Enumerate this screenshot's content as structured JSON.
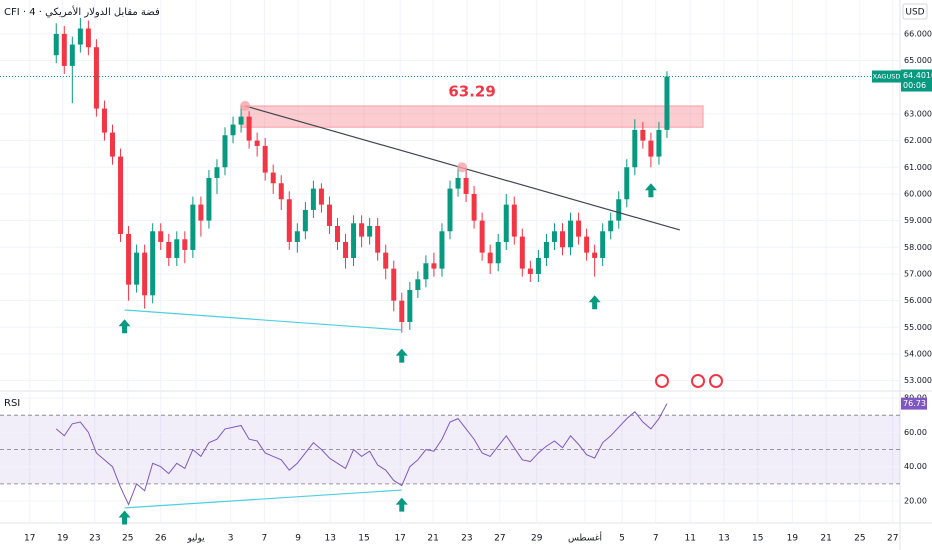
{
  "chart_data": [
    {
      "type": "candlestick",
      "title": "CFI · فضة مقابل الدولار الأمريكي · 4",
      "currency": "USD",
      "x": [
        0,
        1,
        2,
        3,
        4,
        5,
        6,
        7,
        8,
        9,
        10,
        11,
        12,
        13,
        14,
        15,
        16,
        17,
        18,
        19,
        20,
        21,
        22,
        23,
        24,
        25,
        26,
        27,
        28,
        29,
        30,
        31,
        32,
        33,
        34,
        35,
        36,
        37,
        38,
        39,
        40,
        41,
        42,
        43,
        44,
        45,
        46,
        47,
        48,
        49,
        50,
        51,
        52,
        53,
        54,
        55,
        56,
        57,
        58,
        59,
        60,
        61,
        62,
        63,
        64,
        65,
        66,
        67,
        68,
        69,
        70,
        71,
        72,
        73,
        74,
        75,
        76
      ],
      "open": [
        65.2,
        66.0,
        64.8,
        65.6,
        66.2,
        65.5,
        63.2,
        62.3,
        61.4,
        58.5,
        56.6,
        57.8,
        56.2,
        58.6,
        58.2,
        57.6,
        58.3,
        57.9,
        59.6,
        59.0,
        60.6,
        61.0,
        62.2,
        62.6,
        62.9,
        62.0,
        61.8,
        60.8,
        60.4,
        59.8,
        58.2,
        58.6,
        59.4,
        60.2,
        59.6,
        58.8,
        58.2,
        57.6,
        58.9,
        58.4,
        58.8,
        57.8,
        57.2,
        56.0,
        55.2,
        56.4,
        56.8,
        57.4,
        57.2,
        58.6,
        60.2,
        60.6,
        60.0,
        59.0,
        57.8,
        57.4,
        58.2,
        59.6,
        58.4,
        57.2,
        57.0,
        57.6,
        58.2,
        58.6,
        58.0,
        59.0,
        58.4,
        57.8,
        57.6,
        58.6,
        59.0,
        59.8,
        61.0,
        62.4,
        62.0,
        61.4,
        62.4
      ],
      "high": [
        66.4,
        66.3,
        65.9,
        66.6,
        66.5,
        65.8,
        63.5,
        62.6,
        61.7,
        58.8,
        58.1,
        58.1,
        58.9,
        58.9,
        58.5,
        58.6,
        58.6,
        59.9,
        59.9,
        60.9,
        61.3,
        62.5,
        62.9,
        63.3,
        63.1,
        62.3,
        62.1,
        61.1,
        60.7,
        60.1,
        58.9,
        59.7,
        60.5,
        60.4,
        59.9,
        59.1,
        58.5,
        59.2,
        59.2,
        59.1,
        59.1,
        58.1,
        57.5,
        56.3,
        56.7,
        57.1,
        57.7,
        57.8,
        58.9,
        60.5,
        61.0,
        60.9,
        60.3,
        59.3,
        58.1,
        58.5,
        60.0,
        59.9,
        58.7,
        57.5,
        57.9,
        58.5,
        58.9,
        58.9,
        59.3,
        59.3,
        58.7,
        58.1,
        58.9,
        59.3,
        60.1,
        61.3,
        62.8,
        62.7,
        62.3,
        62.7,
        64.6
      ],
      "low": [
        64.9,
        64.5,
        63.4,
        65.3,
        65.2,
        62.9,
        62.0,
        61.1,
        58.2,
        56.0,
        56.3,
        55.7,
        55.9,
        57.9,
        57.3,
        57.3,
        57.4,
        57.6,
        58.4,
        58.7,
        60.0,
        60.7,
        61.9,
        62.3,
        61.7,
        61.4,
        60.5,
        60.0,
        59.4,
        57.9,
        57.8,
        58.3,
        59.1,
        59.3,
        58.5,
        57.9,
        57.2,
        57.3,
        58.0,
        58.1,
        57.5,
        56.8,
        55.6,
        54.8,
        54.9,
        56.1,
        56.5,
        56.9,
        56.9,
        58.3,
        59.9,
        59.7,
        58.7,
        57.5,
        57.0,
        57.1,
        57.9,
        58.1,
        56.9,
        56.7,
        56.7,
        57.3,
        57.9,
        57.7,
        57.7,
        58.1,
        57.5,
        56.9,
        57.3,
        58.3,
        58.7,
        59.5,
        60.7,
        61.7,
        61.0,
        61.1,
        62.1
      ],
      "close": [
        66.0,
        64.8,
        65.6,
        66.2,
        65.5,
        63.2,
        62.3,
        61.4,
        58.5,
        56.6,
        57.8,
        56.2,
        58.6,
        58.2,
        57.6,
        58.3,
        57.9,
        59.6,
        59.0,
        60.6,
        61.0,
        62.2,
        62.6,
        62.9,
        62.0,
        61.8,
        60.8,
        60.4,
        59.8,
        58.2,
        58.6,
        59.4,
        60.2,
        59.6,
        58.8,
        58.2,
        57.6,
        58.9,
        58.4,
        58.8,
        57.8,
        57.2,
        56.0,
        55.2,
        56.4,
        56.8,
        57.4,
        57.2,
        58.6,
        60.2,
        60.6,
        60.0,
        59.0,
        57.8,
        57.4,
        58.2,
        59.6,
        58.4,
        57.2,
        57.0,
        57.6,
        58.2,
        58.6,
        58.0,
        59.0,
        58.4,
        57.8,
        57.6,
        58.6,
        59.0,
        59.8,
        61.0,
        62.4,
        62.0,
        61.4,
        62.4,
        64.401
      ],
      "up_color": "#089981",
      "down_color": "#f23645",
      "xlim": [
        -7,
        105
      ],
      "xticks": [
        {
          "value": -3.3,
          "label": "17"
        },
        {
          "value": 0.8,
          "label": "19"
        },
        {
          "value": 4.8,
          "label": "23"
        },
        {
          "value": 8.9,
          "label": "25"
        },
        {
          "value": 13,
          "label": "26"
        },
        {
          "value": 17.4,
          "label": "يوليو"
        },
        {
          "value": 21.7,
          "label": "3"
        },
        {
          "value": 25.9,
          "label": "7"
        },
        {
          "value": 30.1,
          "label": "9"
        },
        {
          "value": 34.1,
          "label": "13"
        },
        {
          "value": 38.3,
          "label": "15"
        },
        {
          "value": 42.8,
          "label": "17"
        },
        {
          "value": 46.9,
          "label": "21"
        },
        {
          "value": 51.1,
          "label": "23"
        },
        {
          "value": 55.2,
          "label": "27"
        },
        {
          "value": 59.8,
          "label": "29"
        },
        {
          "value": 65.8,
          "label": "أغسطس"
        },
        {
          "value": 70.4,
          "label": "5"
        },
        {
          "value": 74.6,
          "label": "7"
        },
        {
          "value": 78.9,
          "label": "11"
        },
        {
          "value": 83.1,
          "label": "13"
        },
        {
          "value": 87.3,
          "label": "15"
        },
        {
          "value": 91.6,
          "label": "19"
        },
        {
          "value": 95.8,
          "label": "21"
        },
        {
          "value": 100,
          "label": "25"
        },
        {
          "value": 104.1,
          "label": "27"
        }
      ],
      "ylim": [
        52.65,
        67.27
      ],
      "yticks": [
        {
          "value": 53,
          "label": "53.0000"
        },
        {
          "value": 54,
          "label": "54.0000"
        },
        {
          "value": 55,
          "label": "55.0000"
        },
        {
          "value": 56,
          "label": "56.0000"
        },
        {
          "value": 57,
          "label": "57.0000"
        },
        {
          "value": 58,
          "label": "58.0000"
        },
        {
          "value": 59,
          "label": "59.0000"
        },
        {
          "value": 60,
          "label": "60.0000"
        },
        {
          "value": 61,
          "label": "61.0000"
        },
        {
          "value": 62,
          "label": "62.0000"
        },
        {
          "value": 63,
          "label": "63.0000"
        },
        {
          "value": 65,
          "label": "65.0000"
        },
        {
          "value": 66,
          "label": "66.0000"
        }
      ],
      "last_name": "XAGUSD",
      "last_label": "64.4010",
      "countdown": "00:06",
      "zone": {
        "label": "63.29",
        "x": [
          23,
          80.5
        ],
        "y": [
          62.5,
          63.3
        ],
        "color": "#f23645"
      },
      "trendlines": [
        {
          "x": [
            23.5,
            77.6
          ],
          "y": [
            63.3,
            58.65
          ],
          "color": "#434651"
        },
        {
          "x": [
            8.5,
            43
          ],
          "y": [
            55.65,
            54.9
          ],
          "color": "#4dd0e1"
        }
      ],
      "pivots": {
        "x": [
          23.5,
          50.5
        ],
        "y": [
          63.3,
          61.0
        ],
        "color": "#f7a1a8"
      },
      "arrows": {
        "x": [
          8.5,
          43,
          67,
          74
        ],
        "y": [
          55.3,
          54.2,
          56.2,
          60.4
        ],
        "color": "#089981"
      }
    },
    {
      "type": "line",
      "title": "RSI",
      "x": [
        0,
        1,
        2,
        3,
        4,
        5,
        6,
        7,
        8,
        9,
        10,
        11,
        12,
        13,
        14,
        15,
        16,
        17,
        18,
        19,
        20,
        21,
        22,
        23,
        24,
        25,
        26,
        27,
        28,
        29,
        30,
        31,
        32,
        33,
        34,
        35,
        36,
        37,
        38,
        39,
        40,
        41,
        42,
        43,
        44,
        45,
        46,
        47,
        48,
        49,
        50,
        51,
        52,
        53,
        54,
        55,
        56,
        57,
        58,
        59,
        60,
        61,
        62,
        63,
        64,
        65,
        66,
        67,
        68,
        69,
        70,
        71,
        72,
        73,
        74,
        75,
        76
      ],
      "values": [
        62,
        58,
        65,
        66,
        60,
        48,
        44,
        40,
        28,
        18,
        30,
        26,
        42,
        40,
        36,
        42,
        39,
        50,
        46,
        54,
        56,
        62,
        63,
        64,
        56,
        55,
        48,
        46,
        44,
        38,
        42,
        48,
        54,
        50,
        45,
        42,
        39,
        50,
        46,
        49,
        41,
        38,
        32,
        29,
        40,
        44,
        50,
        49,
        56,
        66,
        68,
        62,
        56,
        48,
        46,
        52,
        58,
        51,
        44,
        43,
        48,
        52,
        55,
        51,
        58,
        53,
        47,
        45,
        54,
        58,
        63,
        68,
        72,
        66,
        62,
        68,
        76.73
      ],
      "color": "#7e57c2",
      "xlim": [
        -7,
        105
      ],
      "ylim": [
        7.8,
        83.5
      ],
      "yticks": [
        {
          "value": 20,
          "label": "20.00"
        },
        {
          "value": 40,
          "label": "40.00"
        },
        {
          "value": 60,
          "label": "60.00"
        },
        {
          "value": 80,
          "label": "80.00"
        }
      ],
      "levels": [
        70,
        50,
        30
      ],
      "last_label": "76.73",
      "divergence": {
        "x": [
          8.5,
          43
        ],
        "y": [
          16,
          26.4
        ],
        "color": "#4dd0e1"
      },
      "arrows": {
        "x": [
          8.5,
          43
        ],
        "y": [
          14.5,
          22
        ],
        "color": "#089981"
      }
    }
  ]
}
